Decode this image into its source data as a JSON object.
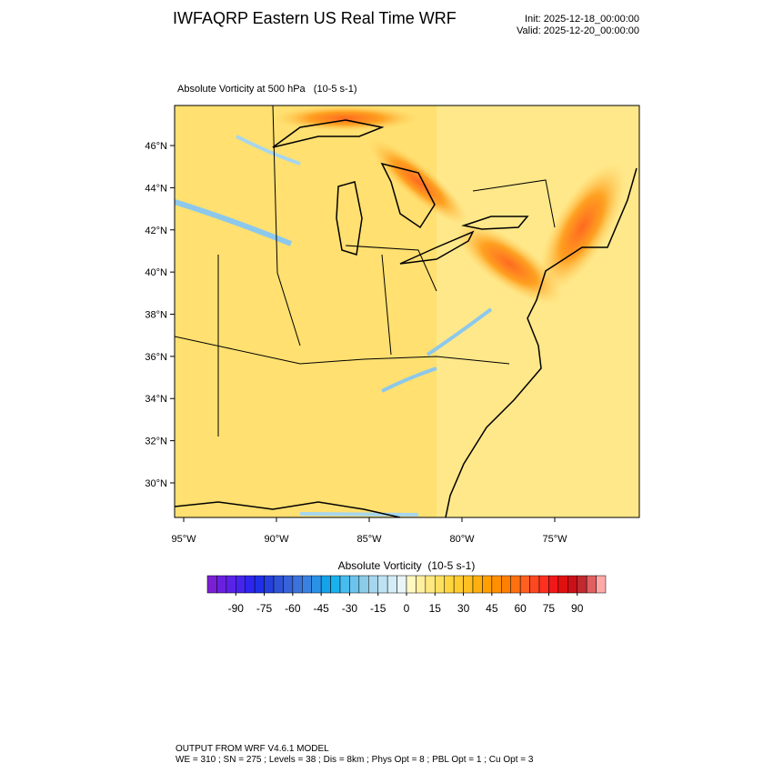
{
  "header": {
    "title": "IWFAQRP Eastern US Real Time WRF",
    "init": "Init: 2025-12-18_00:00:00",
    "valid": "Valid: 2025-12-20_00:00:00"
  },
  "map": {
    "title": "Absolute Vorticity at 500 hPa   (10-5 s-1)",
    "lon_range": [
      -95.49,
      -70.44
    ],
    "lat_range": [
      28.36,
      47.9
    ],
    "lat_ticks": [
      {
        "value": 30,
        "label": "30°N"
      },
      {
        "value": 32,
        "label": "32°N"
      },
      {
        "value": 34,
        "label": "34°N"
      },
      {
        "value": 36,
        "label": "36°N"
      },
      {
        "value": 38,
        "label": "38°N"
      },
      {
        "value": 40,
        "label": "40°N"
      },
      {
        "value": 42,
        "label": "42°N"
      },
      {
        "value": 44,
        "label": "44°N"
      },
      {
        "value": 46,
        "label": "46°N"
      }
    ],
    "lon_ticks": [
      {
        "value": -95,
        "label": "95°W"
      },
      {
        "value": -90,
        "label": "90°W"
      },
      {
        "value": -85,
        "label": "85°W"
      },
      {
        "value": -80,
        "label": "80°W"
      },
      {
        "value": -75,
        "label": "75°W"
      }
    ]
  },
  "colorbar": {
    "title": "Absolute Vorticity  (10-5 s-1)",
    "lim": [
      -105,
      105
    ],
    "ticks": [
      -90,
      -75,
      -60,
      -45,
      -30,
      -15,
      0,
      15,
      30,
      45,
      60,
      75,
      90
    ],
    "colors": [
      "#7b1fd4",
      "#6a1fe0",
      "#5a22e8",
      "#4524ec",
      "#2e26ee",
      "#1e2fe8",
      "#2440dc",
      "#2f52d6",
      "#3762d8",
      "#3b72dc",
      "#3a82e2",
      "#2a92e6",
      "#14a2ea",
      "#1ab2ee",
      "#48bcee",
      "#6cc4ec",
      "#8ccce8",
      "#a6d6ee",
      "#bee2f2",
      "#d4ecf6",
      "#e8f4f8",
      "#fff8c0",
      "#fff0a0",
      "#ffe880",
      "#ffe060",
      "#ffd640",
      "#ffcc30",
      "#ffc020",
      "#ffb010",
      "#ffa000",
      "#ff9000",
      "#ff8000",
      "#ff7010",
      "#ff6020",
      "#ff4820",
      "#ff3020",
      "#f01818",
      "#e01010",
      "#cc1018",
      "#c02a30",
      "#e06060",
      "#ffa8a8"
    ]
  },
  "footer": {
    "line1": "OUTPUT FROM WRF V4.6.1 MODEL",
    "line2": "WE = 310 ; SN = 275 ; Levels = 38 ; Dis = 8km ; Phys Opt = 8 ; PBL Opt = 1 ; Cu Opt = 3"
  }
}
